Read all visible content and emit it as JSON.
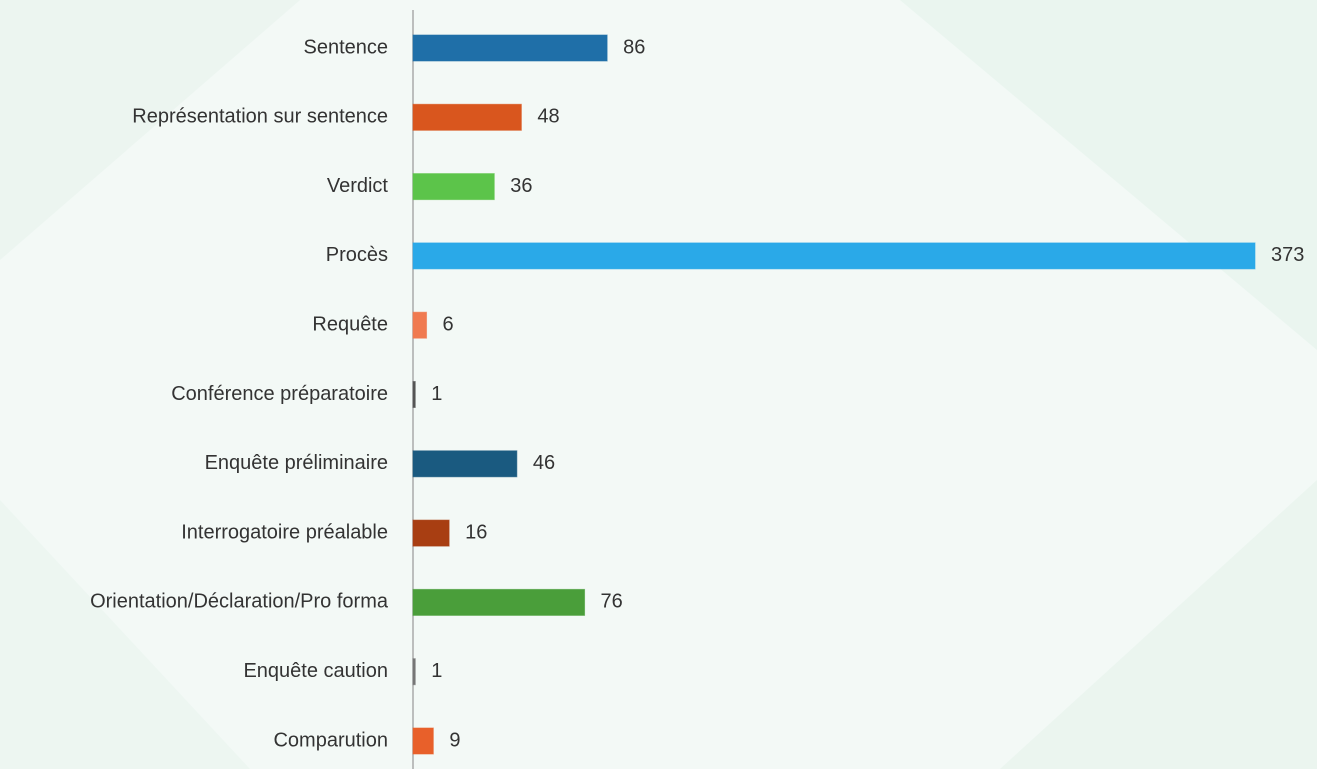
{
  "chart_data": {
    "type": "barh",
    "categories": [
      "Sentence",
      "Représentation sur sentence",
      "Verdict",
      "Procès",
      "Requête",
      "Conférence préparatoire",
      "Enquête préliminaire",
      "Interrogatoire préalable",
      "Orientation/Déclaration/Pro forma",
      "Enquête caution",
      "Comparution"
    ],
    "values": [
      86,
      48,
      36,
      373,
      6,
      1,
      46,
      16,
      76,
      1,
      9
    ],
    "colors": [
      "#1f6fa8",
      "#d9561e",
      "#5cc44a",
      "#2aa9e8",
      "#f07a50",
      "#555555",
      "#1a5a80",
      "#a83e12",
      "#4a9e3a",
      "#777777",
      "#e8602a"
    ]
  }
}
